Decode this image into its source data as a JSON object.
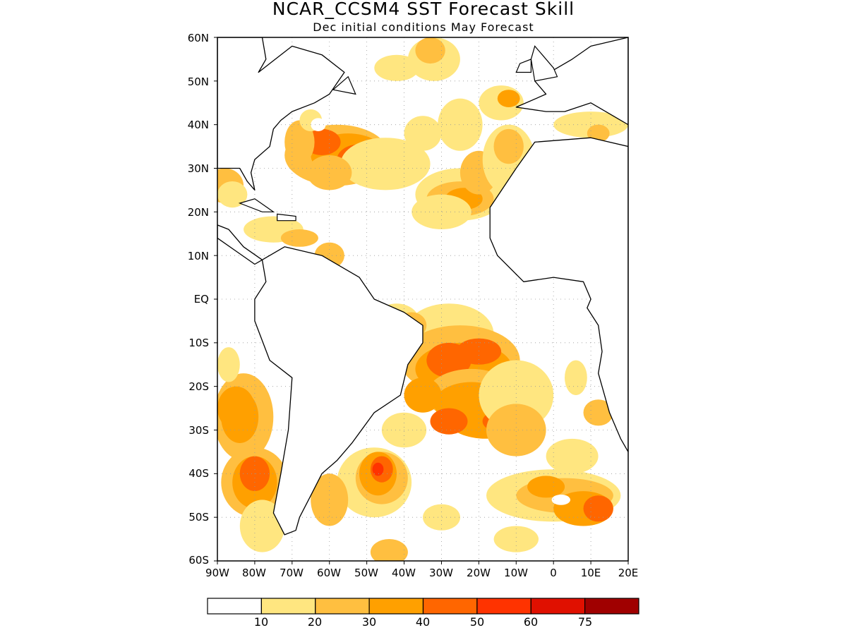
{
  "title": "NCAR_CCSM4  SST Forecast Skill",
  "subtitle": "Dec initial conditions   May Forecast",
  "lat_labels": [
    "60N",
    "50N",
    "40N",
    "30N",
    "20N",
    "10N",
    "EQ",
    "10S",
    "20S",
    "30S",
    "40S",
    "50S",
    "60S"
  ],
  "lon_labels": [
    "90W",
    "80W",
    "70W",
    "60W",
    "50W",
    "40W",
    "30W",
    "20W",
    "10W",
    "0",
    "10E",
    "20E"
  ],
  "colorbar": {
    "labels": [
      "10",
      "20",
      "30",
      "40",
      "50",
      "60",
      "75"
    ],
    "colors": [
      "#ffffff",
      "#ffe680",
      "#ffbf40",
      "#ffa000",
      "#ff6600",
      "#ff3300",
      "#e01000",
      "#a00000"
    ]
  },
  "colors": {
    "coastline": "#000000",
    "grid": "#999999"
  },
  "skill_regions": [
    {
      "region": "Gulf Stream / NW Atlantic",
      "level": "40-50"
    },
    {
      "region": "Subtropical North Atlantic",
      "level": "40-50"
    },
    {
      "region": "Tropical South Atlantic",
      "level": "50-60"
    },
    {
      "region": "Southeast Pacific off Chile",
      "level": "50-60"
    },
    {
      "region": "Southwest Atlantic near 40S 45W",
      "level": "50-60"
    },
    {
      "region": "South Atlantic 45S 10W-20E",
      "level": "50-60"
    }
  ]
}
